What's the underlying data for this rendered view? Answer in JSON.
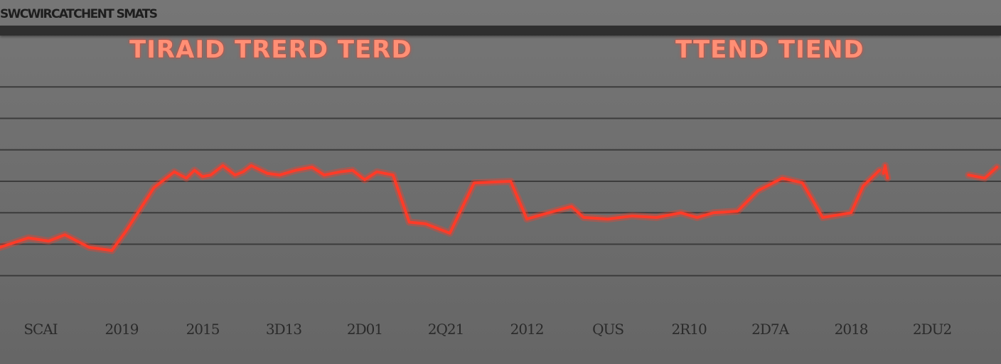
{
  "header": {
    "label": "SWCWIRCATCHENT SMATS"
  },
  "titles": {
    "left": "TIRAID TRERD TERD",
    "right": "TTEND TIEND"
  },
  "colors": {
    "background": "#6e6e6e",
    "line": "#ff3b28",
    "title": "#ff8f75",
    "grid": "#3c3c3c"
  },
  "chart_data": {
    "type": "line",
    "title": "",
    "xlabel": "",
    "ylabel": "",
    "grid": true,
    "legend": "none",
    "ylim": [
      0,
      8
    ],
    "y_gridlines": [
      1,
      2,
      3,
      4,
      5,
      6,
      7
    ],
    "x_tick_labels": [
      "SCAI",
      "2019",
      "2015",
      "3D13",
      "2D01",
      "2Q21",
      "2012",
      "QUS",
      "2R10",
      "2D7A",
      "2018",
      "2DU2"
    ],
    "x_tick_positions": [
      0.5,
      1.5,
      2.5,
      3.5,
      4.5,
      5.5,
      6.5,
      7.5,
      8.5,
      9.5,
      10.5,
      11.5
    ],
    "xlim": [
      0,
      12.35
    ],
    "series": [
      {
        "segments": [
          {
            "x": [
              0.0,
              0.35,
              0.6,
              0.8,
              1.1,
              1.38,
              1.55,
              1.9,
              2.15,
              2.3,
              2.4,
              2.5,
              2.6,
              2.75,
              2.9,
              3.0,
              3.1,
              3.3,
              3.45,
              3.65,
              3.85,
              4.0,
              4.2,
              4.35,
              4.5,
              4.65,
              4.85,
              5.05,
              5.25,
              5.55,
              5.85,
              6.3,
              6.5,
              6.7,
              7.05,
              7.2,
              7.5,
              7.8,
              8.1,
              8.4,
              8.6,
              8.8,
              9.1,
              9.35,
              9.65,
              9.9,
              10.15,
              10.5,
              10.65,
              10.85
            ],
            "y": [
              1.9,
              2.2,
              2.1,
              2.3,
              1.9,
              1.8,
              2.4,
              3.8,
              4.3,
              4.1,
              4.35,
              4.15,
              4.2,
              4.5,
              4.2,
              4.3,
              4.5,
              4.25,
              4.2,
              4.35,
              4.45,
              4.2,
              4.3,
              4.35,
              4.05,
              4.3,
              4.2,
              2.7,
              2.65,
              2.35,
              3.95,
              4.0,
              2.8,
              2.95,
              3.2,
              2.85,
              2.8,
              2.9,
              2.85,
              3.0,
              2.85,
              3.0,
              3.05,
              3.7,
              4.1,
              3.95,
              2.85,
              3.0,
              3.85,
              4.35
            ]
          },
          {
            "x": [
              10.9,
              10.92,
              10.95
            ],
            "y": [
              4.25,
              4.5,
              4.1
            ]
          },
          {
            "x": [
              11.95,
              12.15,
              12.3
            ],
            "y": [
              4.2,
              4.1,
              4.45
            ]
          }
        ]
      }
    ]
  }
}
